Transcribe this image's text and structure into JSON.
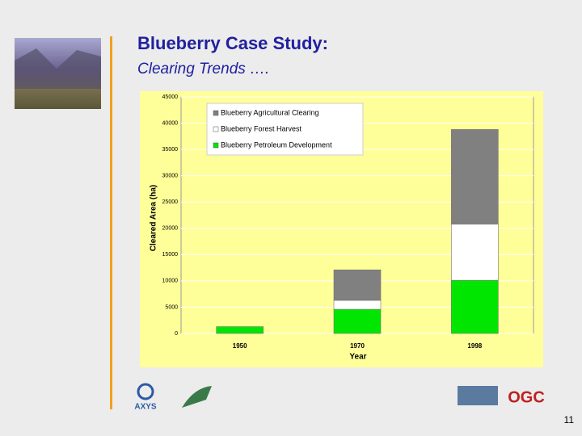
{
  "slide": {
    "title": "Blueberry Case Study:",
    "subtitle": "Clearing Trends ….",
    "page_number": "11",
    "logos": {
      "left": "AXYS",
      "right": "OGC"
    }
  },
  "chart_data": {
    "type": "stacked_bar",
    "categories": [
      "1950",
      "1970",
      "1998"
    ],
    "series": [
      {
        "name": "Blueberry Petroleum Development",
        "color": "#00e600",
        "values": [
          1300,
          4600,
          10100
        ]
      },
      {
        "name": "Blueberry Forest Harvest",
        "color": "#ffffff",
        "values": [
          0,
          1700,
          10700
        ]
      },
      {
        "name": "Blueberry Agricultural Clearing",
        "color": "#808080",
        "values": [
          0,
          5800,
          18000
        ]
      }
    ],
    "xlabel": "Year",
    "ylabel": "Cleared Area (ha)",
    "ylim": [
      0,
      45000
    ],
    "yticks": [
      0,
      5000,
      10000,
      15000,
      20000,
      25000,
      30000,
      35000,
      40000,
      45000
    ],
    "grid": true,
    "legend": "top-left"
  }
}
